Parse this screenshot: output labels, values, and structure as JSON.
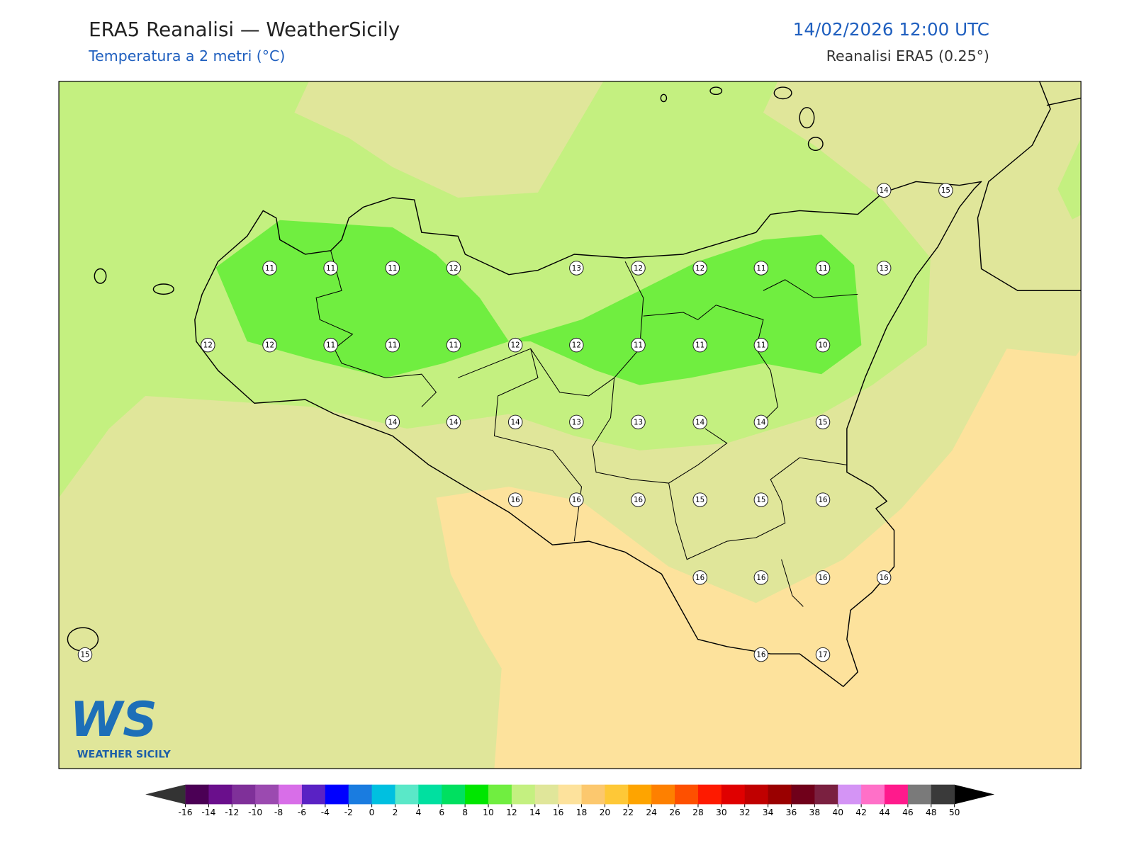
{
  "header": {
    "title": "ERA5 Reanalisi — WeatherSicily",
    "subtitle": "Temperatura a 2 metri (°C)",
    "datetime": "14/02/2026 12:00 UTC",
    "source": "Reanalisi ERA5 (0.25°)"
  },
  "stations": [
    11,
    11,
    11,
    12,
    13,
    12,
    12,
    11,
    11,
    13,
    14,
    15,
    12,
    12,
    11,
    11,
    11,
    12,
    12,
    11,
    11,
    11,
    10,
    14,
    14,
    14,
    13,
    13,
    14,
    14,
    15,
    16,
    16,
    16,
    15,
    15,
    16,
    16,
    16,
    16,
    16,
    15,
    16,
    17
  ],
  "colorbar": {
    "ticks": [
      -16,
      -14,
      -12,
      -10,
      -8,
      -6,
      -4,
      -2,
      0,
      2,
      4,
      6,
      8,
      10,
      12,
      14,
      16,
      18,
      20,
      22,
      24,
      26,
      28,
      30,
      32,
      34,
      36,
      38,
      40,
      42,
      44,
      46,
      48,
      50
    ],
    "colors": [
      "#4b0055",
      "#6a0f8c",
      "#7f3099",
      "#9b4ab0",
      "#d86ee8",
      "#5a22c4",
      "#0000ff",
      "#1a7ce0",
      "#00c0e0",
      "#5ae8c8",
      "#00e0a0",
      "#00e060",
      "#00e600",
      "#70ee40",
      "#c4f080",
      "#e0e69a",
      "#fde29c",
      "#fcc86e",
      "#fec837",
      "#fea400",
      "#fe8000",
      "#fe5000",
      "#fe1a00",
      "#e00000",
      "#c00000",
      "#9a0000",
      "#70001a",
      "#7a2040",
      "#d494f5",
      "#ff70c8",
      "#ff1a8c",
      "#7a7a7a",
      "#3a3a3a"
    ],
    "under_color": "#333333",
    "over_color": "#000000"
  },
  "logo": {
    "mark": "WS",
    "text": "WEATHER SICILY"
  }
}
